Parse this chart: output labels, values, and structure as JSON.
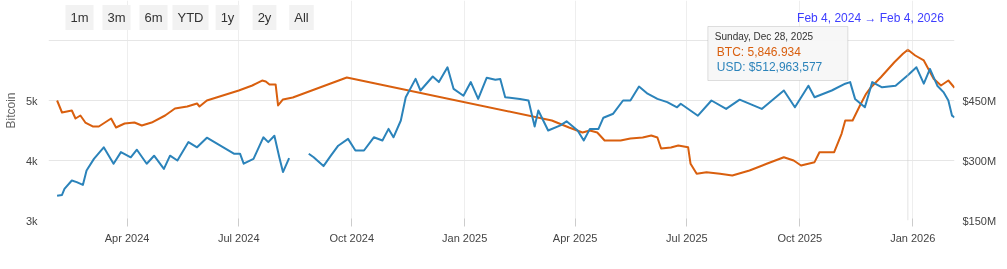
{
  "chart_data": {
    "type": "line",
    "ylabel": "Bitcoin",
    "xlim": [
      "2024-01-28",
      "2026-02-04"
    ],
    "xticks": [
      {
        "value": "2024-04-01",
        "label": "Apr 2024"
      },
      {
        "value": "2024-07-01",
        "label": "Jul 2024"
      },
      {
        "value": "2024-10-01",
        "label": "Oct 2024"
      },
      {
        "value": "2025-01-01",
        "label": "Jan 2025"
      },
      {
        "value": "2025-04-01",
        "label": "Apr 2025"
      },
      {
        "value": "2025-07-01",
        "label": "Jul 2025"
      },
      {
        "value": "2025-10-01",
        "label": "Oct 2025"
      },
      {
        "value": "2026-01-01",
        "label": "Jan 2026"
      }
    ],
    "ylim": [
      3000,
      6000
    ],
    "yticks": [
      {
        "value": 3000,
        "label": "3k"
      },
      {
        "value": 4000,
        "label": "4k"
      },
      {
        "value": 5000,
        "label": "5k"
      },
      {
        "value": 6000,
        "label": null
      }
    ],
    "y2lim": [
      150,
      600
    ],
    "y2ticks": [
      {
        "value": 150,
        "label": "$150M"
      },
      {
        "value": 300,
        "label": "$300M"
      },
      {
        "value": 450,
        "label": "$450M"
      },
      {
        "value": 600,
        "label": null
      }
    ],
    "grid": true,
    "series": [
      {
        "color": "#d95f0e",
        "x": [
          "2024-02-04",
          "2024-02-08",
          "2024-02-16",
          "2024-02-19",
          "2024-02-23",
          "2024-02-27",
          "2024-03-04",
          "2024-03-09",
          "2024-03-14",
          "2024-03-19",
          "2024-03-23",
          "2024-03-30",
          "2024-04-07",
          "2024-04-13",
          "2024-04-21",
          "2024-05-02",
          "2024-05-10",
          "2024-05-20",
          "2024-05-28",
          "2024-05-30",
          "2024-06-05",
          "2024-06-18",
          "2024-07-01",
          "2024-07-12",
          "2024-07-20",
          "2024-07-23",
          "2024-07-26",
          "2024-07-31",
          "2024-08-02",
          "2024-08-06",
          "2024-08-14",
          "2024-09-27",
          "2025-03-13",
          "2025-03-27",
          "2025-04-07",
          "2025-04-13",
          "2025-04-19",
          "2025-04-25",
          "2025-05-08",
          "2025-05-16",
          "2025-05-26",
          "2025-06-02",
          "2025-06-07",
          "2025-06-10",
          "2025-06-18",
          "2025-06-24",
          "2025-07-02",
          "2025-07-04",
          "2025-07-09",
          "2025-07-17",
          "2025-07-28",
          "2025-08-07",
          "2025-08-21",
          "2025-09-04",
          "2025-09-18",
          "2025-09-26",
          "2025-10-02",
          "2025-10-13",
          "2025-10-17",
          "2025-10-29",
          "2025-11-04",
          "2025-11-07",
          "2025-11-13",
          "2025-11-19",
          "2025-11-24",
          "2025-11-28",
          "2025-12-06",
          "2025-12-17",
          "2025-12-24",
          "2025-12-28",
          "2026-01-03",
          "2026-01-10",
          "2026-01-18",
          "2026-01-24",
          "2026-01-30",
          "2026-02-04"
        ],
        "values": [
          5000,
          4800,
          4833,
          4700,
          4750,
          4633,
          4567,
          4567,
          4633,
          4700,
          4550,
          4617,
          4633,
          4583,
          4633,
          4750,
          4867,
          4900,
          4950,
          4900,
          5000,
          5083,
          5167,
          5250,
          5333,
          5317,
          5267,
          5267,
          4917,
          5017,
          5050,
          5383,
          4667,
          4550,
          4467,
          4500,
          4467,
          4333,
          4333,
          4367,
          4383,
          4417,
          4383,
          4200,
          4217,
          4250,
          4222,
          3945,
          3778,
          3805,
          3778,
          3750,
          3833,
          3945,
          4055,
          4000,
          3917,
          3972,
          4138,
          4138,
          4445,
          4667,
          4667,
          4917,
          5112,
          5222,
          5388,
          5638,
          5778,
          5846.934,
          5750,
          5667,
          5362,
          5250,
          5333,
          5212
        ]
      },
      {
        "color": "#2b83ba",
        "axis": "y2",
        "x": [
          "2024-02-04",
          "2024-02-08",
          "2024-02-10",
          "2024-02-16",
          "2024-02-20",
          "2024-02-25",
          "2024-02-28",
          "2024-03-05",
          "2024-03-13",
          "2024-03-21",
          "2024-03-27",
          "2024-04-04",
          "2024-04-09",
          "2024-04-17",
          "2024-04-23",
          "2024-05-01",
          "2024-05-06",
          "2024-05-12",
          "2024-05-21",
          "2024-05-28",
          "2024-06-05",
          "2024-06-16",
          "2024-06-27",
          "2024-07-02",
          "2024-07-05",
          "2024-07-13",
          "2024-07-21",
          "2024-07-25",
          "2024-07-30",
          "2024-08-03",
          "2024-08-06",
          "2024-08-11",
          "2024-08-19",
          "2024-08-27",
          "2024-08-31",
          "2024-09-08",
          "2024-09-14",
          "2024-09-20",
          "2024-09-28",
          "2024-10-04",
          "2024-10-11",
          "2024-10-19",
          "2024-10-26",
          "2024-10-31",
          "2024-11-04",
          "2024-11-10",
          "2024-11-14",
          "2024-11-22",
          "2024-11-26",
          "2024-12-06",
          "2024-12-11",
          "2024-12-18",
          "2024-12-23",
          "2024-12-31",
          "2025-01-06",
          "2025-01-12",
          "2025-01-19",
          "2025-01-26",
          "2025-01-30",
          "2025-02-03",
          "2025-02-15",
          "2025-02-22",
          "2025-02-27",
          "2025-03-02",
          "2025-03-10",
          "2025-03-20",
          "2025-03-25",
          "2025-04-03",
          "2025-04-08",
          "2025-04-13",
          "2025-04-20",
          "2025-04-24",
          "2025-05-02",
          "2025-05-10",
          "2025-05-16",
          "2025-05-23",
          "2025-05-30",
          "2025-06-07",
          "2025-06-15",
          "2025-06-23",
          "2025-06-26",
          "2025-07-10",
          "2025-07-21",
          "2025-08-02",
          "2025-08-13",
          "2025-08-31",
          "2025-09-18",
          "2025-09-27",
          "2025-10-08",
          "2025-10-13",
          "2025-10-27",
          "2025-11-07",
          "2025-11-11",
          "2025-11-15",
          "2025-11-23",
          "2025-11-29",
          "2025-12-07",
          "2025-12-18",
          "2025-12-23",
          "2025-12-28",
          "2026-01-04",
          "2026-01-10",
          "2026-01-15",
          "2026-01-21",
          "2026-01-26",
          "2026-01-30",
          "2026-02-02",
          "2026-02-04"
        ],
        "values": [
          212,
          214,
          229,
          250,
          246,
          239,
          275,
          304,
          333,
          292,
          321,
          308,
          327,
          292,
          312,
          279,
          312,
          300,
          346,
          333,
          357,
          337,
          317,
          317,
          292,
          304,
          358,
          346,
          362,
          308,
          271,
          306,
          null,
          317,
          308,
          286,
          312,
          337,
          354,
          325,
          325,
          358,
          350,
          379,
          358,
          400,
          458,
          504,
          475,
          510,
          496,
          533,
          479,
          462,
          496,
          454,
          507,
          502,
          504,
          458,
          454,
          450,
          385,
          425,
          375,
          388,
          398,
          375,
          350,
          379,
          379,
          407,
          417,
          450,
          450,
          485,
          467,
          454,
          446,
          433,
          442,
          412,
          450,
          429,
          452,
          429,
          475,
          433,
          487,
          458,
          475,
          492,
          496,
          454,
          433,
          496,
          483,
          487,
          500,
          512.963577,
          533,
          492,
          529,
          487,
          471,
          450,
          412,
          408
        ]
      }
    ],
    "ref_lines": [
      {
        "axis": "x",
        "value": "2025-12-28",
        "color": "#cccccc"
      }
    ],
    "annotations": [
      "1m",
      "3m",
      "6m",
      "YTD",
      "1y",
      "2y",
      "All",
      "Feb 4, 2024  →  Feb 4, 2026",
      "Sunday, Dec 28, 2025",
      "BTC: 5,846.934",
      "USD: $512,963,577"
    ]
  }
}
